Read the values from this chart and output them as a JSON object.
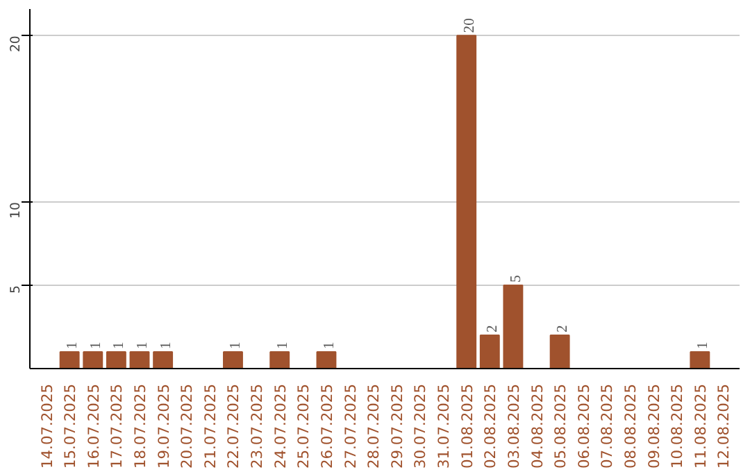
{
  "chart_data": {
    "type": "bar",
    "categories": [
      "14.07.2025",
      "15.07.2025",
      "16.07.2025",
      "17.07.2025",
      "18.07.2025",
      "19.07.2025",
      "20.07.2025",
      "21.07.2025",
      "22.07.2025",
      "23.07.2025",
      "24.07.2025",
      "25.07.2025",
      "26.07.2025",
      "27.07.2025",
      "28.07.2025",
      "29.07.2025",
      "30.07.2025",
      "31.07.2025",
      "01.08.2025",
      "02.08.2025",
      "03.08.2025",
      "04.08.2025",
      "05.08.2025",
      "06.08.2025",
      "07.08.2025",
      "08.08.2025",
      "09.08.2025",
      "10.08.2025",
      "11.08.2025",
      "12.08.2025"
    ],
    "values": [
      0,
      1,
      1,
      1,
      1,
      1,
      0,
      0,
      1,
      0,
      1,
      0,
      1,
      0,
      0,
      0,
      0,
      0,
      20,
      2,
      5,
      0,
      2,
      0,
      0,
      0,
      0,
      0,
      1,
      0
    ],
    "value_labels": [
      null,
      "1",
      "1",
      "1",
      "1",
      "1",
      null,
      null,
      "1",
      null,
      "1",
      null,
      "1",
      null,
      null,
      null,
      null,
      null,
      "20",
      "2",
      "5",
      null,
      "2",
      null,
      null,
      null,
      null,
      null,
      "1",
      null
    ],
    "color": "#a0522d",
    "ylim": [
      0,
      21.6
    ],
    "yticks": [
      5,
      10,
      20
    ],
    "grid": "y"
  }
}
